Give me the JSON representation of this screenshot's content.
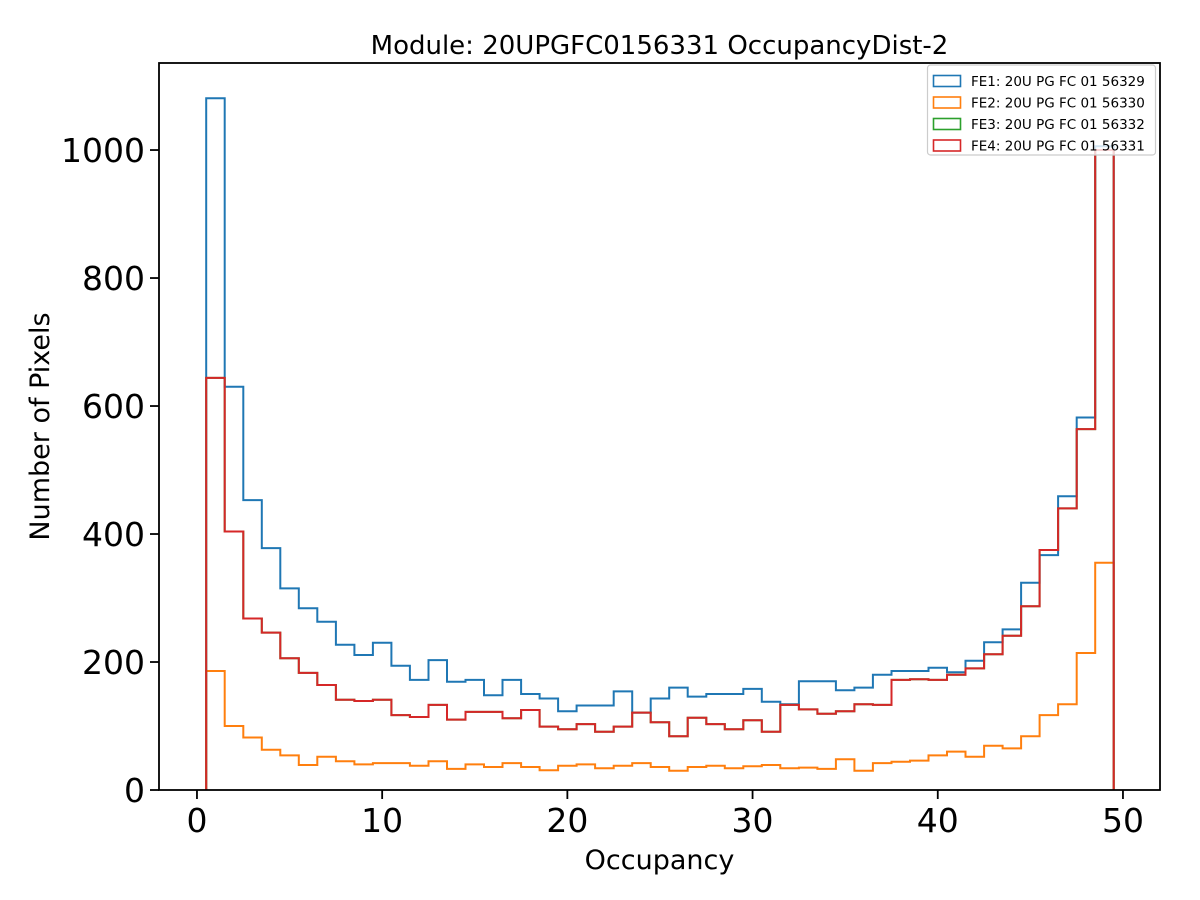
{
  "figure": {
    "background": "#ffffff",
    "spine_color": "#000000",
    "tick_color": "#000000",
    "legend_border_color": "#cccccc"
  },
  "chart_data": {
    "type": "step-histogram",
    "title": "Module: 20UPGFC0156331 OccupancyDist-2",
    "xlabel": "Occupancy",
    "ylabel": "Number of Pixels",
    "xlim": [
      -2.05,
      52
    ],
    "ylim": [
      0,
      1136
    ],
    "xticks": [
      0,
      10,
      20,
      30,
      40,
      50
    ],
    "yticks": [
      0,
      200,
      400,
      600,
      800,
      1000
    ],
    "grid": false,
    "bins": {
      "start": 0.5,
      "width": 1,
      "count": 49
    },
    "legend_position": "upper right",
    "series": [
      {
        "name": "FE1: 20U PG FC 01 56329",
        "color": "#1f77b4",
        "values": [
          1081,
          630,
          453,
          378,
          315,
          284,
          263,
          227,
          211,
          230,
          194,
          172,
          203,
          169,
          172,
          148,
          172,
          150,
          143,
          123,
          132,
          132,
          154,
          121,
          143,
          160,
          146,
          150,
          150,
          158,
          138,
          134,
          170,
          170,
          156,
          160,
          180,
          186,
          186,
          191,
          184,
          202,
          231,
          251,
          324,
          367,
          459,
          582,
          1006
        ]
      },
      {
        "name": "FE2: 20U PG FC 01 56330",
        "color": "#ff7f0e",
        "values": [
          186,
          100,
          82,
          63,
          54,
          39,
          52,
          45,
          40,
          42,
          42,
          38,
          45,
          33,
          40,
          36,
          42,
          36,
          31,
          38,
          40,
          34,
          38,
          42,
          36,
          30,
          36,
          38,
          34,
          37,
          39,
          34,
          35,
          33,
          48,
          30,
          42,
          44,
          46,
          54,
          60,
          52,
          69,
          65,
          84,
          117,
          134,
          214,
          355
        ]
      },
      {
        "name": "FE3: 20U PG FC 01 56332",
        "color": "#2ca02c",
        "values": [
          644,
          404,
          268,
          246,
          206,
          183,
          164,
          141,
          139,
          141,
          117,
          114,
          133,
          110,
          122,
          122,
          112,
          125,
          99,
          95,
          103,
          91,
          99,
          121,
          106,
          84,
          113,
          103,
          95,
          109,
          91,
          133,
          126,
          119,
          123,
          134,
          133,
          172,
          173,
          172,
          180,
          190,
          212,
          241,
          287,
          375,
          440,
          564,
          1000
        ]
      },
      {
        "name": "FE4: 20U PG FC 01 56331",
        "color": "#d62728",
        "values": [
          644,
          404,
          268,
          246,
          206,
          183,
          164,
          141,
          139,
          141,
          117,
          114,
          133,
          110,
          122,
          122,
          112,
          125,
          99,
          95,
          103,
          91,
          99,
          121,
          106,
          84,
          113,
          103,
          95,
          109,
          91,
          133,
          126,
          119,
          123,
          134,
          133,
          172,
          173,
          172,
          180,
          190,
          212,
          241,
          287,
          375,
          440,
          564,
          1000
        ]
      }
    ]
  }
}
